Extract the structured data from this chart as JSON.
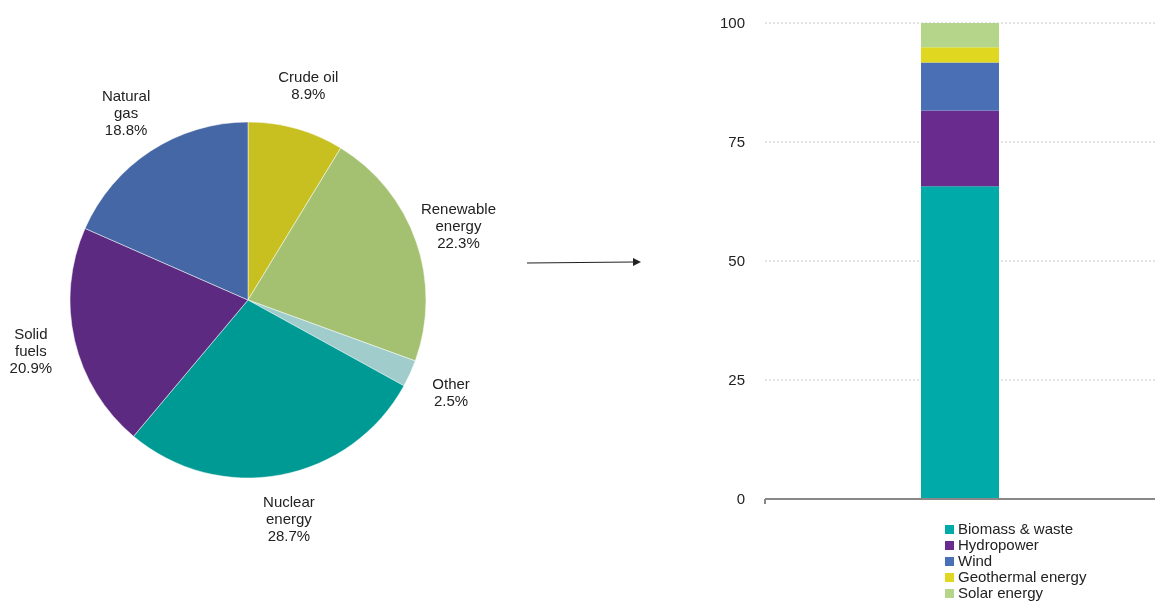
{
  "chart_data": [
    {
      "type": "pie",
      "categories": [
        "Crude oil",
        "Renewable energy",
        "Other",
        "Nuclear energy",
        "Solid fuels",
        "Natural gas"
      ],
      "values": [
        8.9,
        22.3,
        2.5,
        28.7,
        20.9,
        18.8
      ],
      "value_labels": [
        "8.9%",
        "22.3%",
        "2.5%",
        "28.7%",
        "20.9%",
        "18.8%"
      ],
      "colors": [
        "#c8c020",
        "#a3c170",
        "#a0cccc",
        "#009a94",
        "#5c2a80",
        "#4567a5"
      ]
    },
    {
      "type": "bar",
      "stacked": true,
      "categories": [
        null
      ],
      "ylim": [
        0,
        100
      ],
      "yticks": [
        0,
        25,
        50,
        75,
        100
      ],
      "grid": "y",
      "legend": "bottom",
      "series": [
        {
          "name": "Biomass & waste",
          "color": "#00aaa8",
          "values": [
            65.7
          ]
        },
        {
          "name": "Hydropower",
          "color": "#6a2b8e",
          "values": [
            15.9
          ]
        },
        {
          "name": "Wind",
          "color": "#4a6fb5",
          "values": [
            10.1
          ]
        },
        {
          "name": "Geothermal energy",
          "color": "#e0d820",
          "values": [
            3.2
          ]
        },
        {
          "name": "Solar energy",
          "color": "#b5d68a",
          "values": [
            5.1
          ]
        }
      ]
    }
  ]
}
